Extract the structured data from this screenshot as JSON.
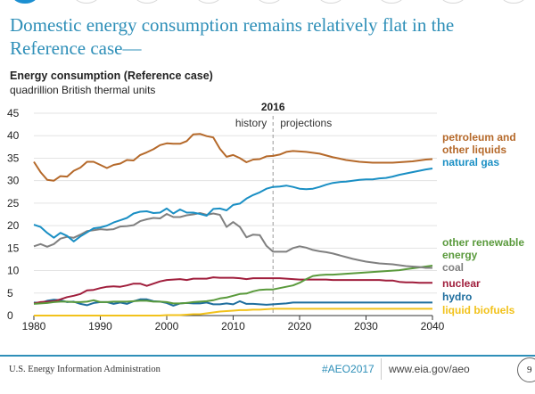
{
  "nav": {
    "dots": 9,
    "active_index": 0
  },
  "header": {
    "title": "Domestic energy consumption remains relatively flat in the Reference case—"
  },
  "chart_title": "Energy consumption (Reference case)",
  "chart_subtitle": "quadrillion British thermal units",
  "footer": {
    "organization": "U.S. Energy Information Administration",
    "hashtag": "#AEO2017",
    "url": "www.eia.gov/aeo",
    "page": "9"
  },
  "chart_data": {
    "type": "line",
    "title": "Energy consumption (Reference case)",
    "ylabel": "quadrillion British thermal units",
    "xlabel": "",
    "xlim": [
      1980,
      2040
    ],
    "ylim": [
      0,
      45
    ],
    "x_ticks": [
      "1980",
      "1990",
      "2000",
      "2010",
      "2020",
      "2030",
      "2040"
    ],
    "y_ticks": [
      "0",
      "5",
      "10",
      "15",
      "20",
      "25",
      "30",
      "35",
      "40",
      "45"
    ],
    "grid": "horizontal",
    "annotations": {
      "divider_year": 2016,
      "divider_label": "2016",
      "left_label": "history",
      "right_label": "projections"
    },
    "legend_placement": "right (direct labels)",
    "x": [
      1980,
      1981,
      1982,
      1983,
      1984,
      1985,
      1986,
      1987,
      1988,
      1989,
      1990,
      1991,
      1992,
      1993,
      1994,
      1995,
      1996,
      1997,
      1998,
      1999,
      2000,
      2001,
      2002,
      2003,
      2004,
      2005,
      2006,
      2007,
      2008,
      2009,
      2010,
      2011,
      2012,
      2013,
      2014,
      2015,
      2016,
      2017,
      2018,
      2019,
      2020,
      2021,
      2022,
      2023,
      2024,
      2025,
      2026,
      2027,
      2028,
      2029,
      2030,
      2031,
      2032,
      2033,
      2034,
      2035,
      2036,
      2037,
      2038,
      2039,
      2040
    ],
    "series": [
      {
        "name": "petroleum and other liquids",
        "color": "#b5692a",
        "values": [
          34.2,
          31.9,
          30.2,
          30.0,
          31.0,
          30.9,
          32.2,
          32.9,
          34.2,
          34.2,
          33.5,
          32.8,
          33.5,
          33.8,
          34.6,
          34.5,
          35.7,
          36.3,
          37.0,
          37.9,
          38.3,
          38.2,
          38.2,
          38.8,
          40.3,
          40.4,
          39.9,
          39.6,
          37.1,
          35.3,
          35.7,
          35.0,
          34.1,
          34.7,
          34.8,
          35.4,
          35.5,
          35.8,
          36.4,
          36.6,
          36.5,
          36.4,
          36.2,
          36.0,
          35.6,
          35.2,
          34.9,
          34.6,
          34.4,
          34.2,
          34.1,
          34.0,
          34.0,
          34.0,
          34.0,
          34.1,
          34.2,
          34.3,
          34.5,
          34.7,
          34.8
        ]
      },
      {
        "name": "natural gas",
        "color": "#1a8fc4",
        "values": [
          20.2,
          19.7,
          18.4,
          17.3,
          18.4,
          17.7,
          16.5,
          17.6,
          18.5,
          19.4,
          19.6,
          20.0,
          20.7,
          21.2,
          21.7,
          22.7,
          23.1,
          23.2,
          22.8,
          22.9,
          23.8,
          22.7,
          23.6,
          22.9,
          22.9,
          22.6,
          22.2,
          23.7,
          23.8,
          23.4,
          24.6,
          24.9,
          26.0,
          26.8,
          27.4,
          28.2,
          28.6,
          28.7,
          28.9,
          28.6,
          28.2,
          28.1,
          28.2,
          28.6,
          29.1,
          29.5,
          29.7,
          29.8,
          30.0,
          30.2,
          30.3,
          30.3,
          30.5,
          30.6,
          30.9,
          31.3,
          31.6,
          31.9,
          32.2,
          32.5,
          32.7
        ]
      },
      {
        "name": "coal",
        "color": "#808080",
        "values": [
          15.4,
          15.9,
          15.3,
          15.9,
          17.1,
          17.5,
          17.3,
          18.0,
          18.8,
          19.0,
          19.2,
          19.1,
          19.2,
          19.8,
          19.9,
          20.1,
          21.0,
          21.4,
          21.7,
          21.6,
          22.6,
          21.9,
          21.9,
          22.3,
          22.5,
          22.8,
          22.4,
          22.7,
          22.4,
          19.7,
          20.8,
          19.7,
          17.4,
          18.0,
          17.9,
          15.5,
          14.2,
          14.2,
          14.2,
          15.0,
          15.4,
          15.1,
          14.6,
          14.3,
          14.1,
          13.8,
          13.4,
          13.0,
          12.6,
          12.3,
          12.0,
          11.8,
          11.6,
          11.5,
          11.4,
          11.2,
          11.0,
          10.9,
          10.8,
          10.6,
          10.6
        ]
      },
      {
        "name": "other renewable energy",
        "color": "#5a9a3c",
        "values": [
          2.6,
          2.7,
          2.8,
          3.0,
          3.1,
          3.1,
          3.0,
          3.0,
          3.1,
          3.4,
          3.0,
          3.0,
          3.1,
          3.1,
          3.1,
          3.2,
          3.3,
          3.3,
          3.1,
          3.1,
          3.0,
          2.7,
          2.7,
          2.8,
          3.0,
          3.1,
          3.2,
          3.4,
          3.8,
          4.0,
          4.4,
          4.8,
          4.9,
          5.4,
          5.7,
          5.8,
          5.8,
          6.1,
          6.4,
          6.7,
          7.3,
          8.1,
          8.8,
          9.0,
          9.1,
          9.1,
          9.2,
          9.3,
          9.4,
          9.5,
          9.6,
          9.7,
          9.8,
          9.9,
          10.0,
          10.1,
          10.3,
          10.5,
          10.7,
          10.9,
          11.1
        ]
      },
      {
        "name": "nuclear",
        "color": "#a01e3c",
        "values": [
          2.7,
          3.0,
          3.1,
          3.2,
          3.6,
          4.1,
          4.4,
          4.8,
          5.6,
          5.7,
          6.1,
          6.4,
          6.5,
          6.4,
          6.7,
          7.1,
          7.1,
          6.6,
          7.1,
          7.6,
          7.9,
          8.0,
          8.1,
          7.9,
          8.2,
          8.2,
          8.2,
          8.5,
          8.4,
          8.4,
          8.4,
          8.3,
          8.1,
          8.3,
          8.3,
          8.3,
          8.3,
          8.3,
          8.2,
          8.1,
          8.0,
          8.0,
          8.0,
          8.0,
          8.0,
          7.9,
          7.9,
          7.9,
          7.9,
          7.9,
          7.9,
          7.9,
          7.9,
          7.8,
          7.8,
          7.5,
          7.4,
          7.4,
          7.3,
          7.3,
          7.3
        ]
      },
      {
        "name": "hydro",
        "color": "#1f6e9e",
        "values": [
          2.9,
          2.8,
          3.3,
          3.5,
          3.4,
          3.0,
          3.1,
          2.6,
          2.3,
          2.8,
          3.0,
          3.0,
          2.6,
          2.9,
          2.6,
          3.2,
          3.6,
          3.6,
          3.2,
          3.1,
          2.8,
          2.2,
          2.7,
          2.8,
          2.7,
          2.7,
          2.9,
          2.5,
          2.5,
          2.7,
          2.5,
          3.2,
          2.6,
          2.6,
          2.5,
          2.4,
          2.5,
          2.6,
          2.7,
          2.9,
          2.9,
          2.9,
          2.9,
          2.9,
          2.9,
          2.9,
          2.9,
          2.9,
          2.9,
          2.9,
          2.9,
          2.9,
          2.9,
          2.9,
          2.9,
          2.9,
          2.9,
          2.9,
          2.9,
          2.9,
          2.9
        ]
      },
      {
        "name": "liquid biofuels",
        "color": "#f2c21b",
        "values": [
          0.0,
          0.0,
          0.0,
          0.0,
          0.0,
          0.0,
          0.0,
          0.0,
          0.0,
          0.0,
          0.0,
          0.0,
          0.0,
          0.0,
          0.0,
          0.0,
          0.0,
          0.0,
          0.0,
          0.0,
          0.1,
          0.1,
          0.1,
          0.2,
          0.3,
          0.3,
          0.5,
          0.7,
          0.9,
          1.0,
          1.1,
          1.2,
          1.2,
          1.3,
          1.3,
          1.4,
          1.5,
          1.5,
          1.5,
          1.5,
          1.5,
          1.5,
          1.5,
          1.5,
          1.5,
          1.5,
          1.5,
          1.5,
          1.5,
          1.5,
          1.5,
          1.5,
          1.5,
          1.5,
          1.5,
          1.5,
          1.5,
          1.5,
          1.5,
          1.5,
          1.5
        ]
      }
    ],
    "series_labels": [
      {
        "lines": [
          "petroleum and",
          "other liquids"
        ],
        "series": 0
      },
      {
        "lines": [
          "natural gas"
        ],
        "series": 1
      },
      {
        "lines": [
          "other renewable",
          "energy"
        ],
        "series": 3
      },
      {
        "lines": [
          "coal"
        ],
        "series": 2
      },
      {
        "lines": [
          "nuclear"
        ],
        "series": 4
      },
      {
        "lines": [
          "hydro"
        ],
        "series": 5
      },
      {
        "lines": [
          "liquid biofuels"
        ],
        "series": 6
      }
    ]
  }
}
